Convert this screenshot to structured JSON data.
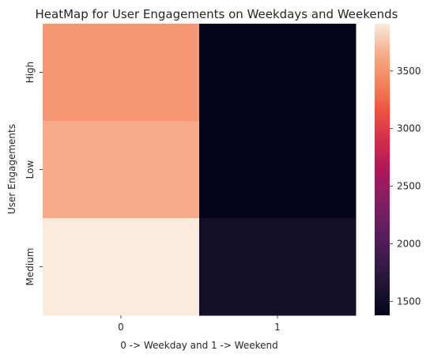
{
  "chart_data": {
    "type": "heatmap",
    "title": "HeatMap for User Engagements on Weekdays and Weekends",
    "xlabel": "0 -> Weekday and 1 -> Weekend",
    "ylabel": "User Engagements",
    "x_categories": [
      "0",
      "1"
    ],
    "y_categories": [
      "High",
      "Low",
      "Medium"
    ],
    "values": [
      [
        3520,
        1380
      ],
      [
        3640,
        1385
      ],
      [
        3910,
        1540
      ]
    ],
    "colormap": "rocket",
    "colorbar": {
      "vmin": 1380,
      "vmax": 3910,
      "ticks": [
        1500,
        2000,
        2500,
        3000,
        3500
      ],
      "tick_labels": [
        "1500",
        "2000",
        "2500",
        "3000",
        "3500"
      ]
    }
  }
}
